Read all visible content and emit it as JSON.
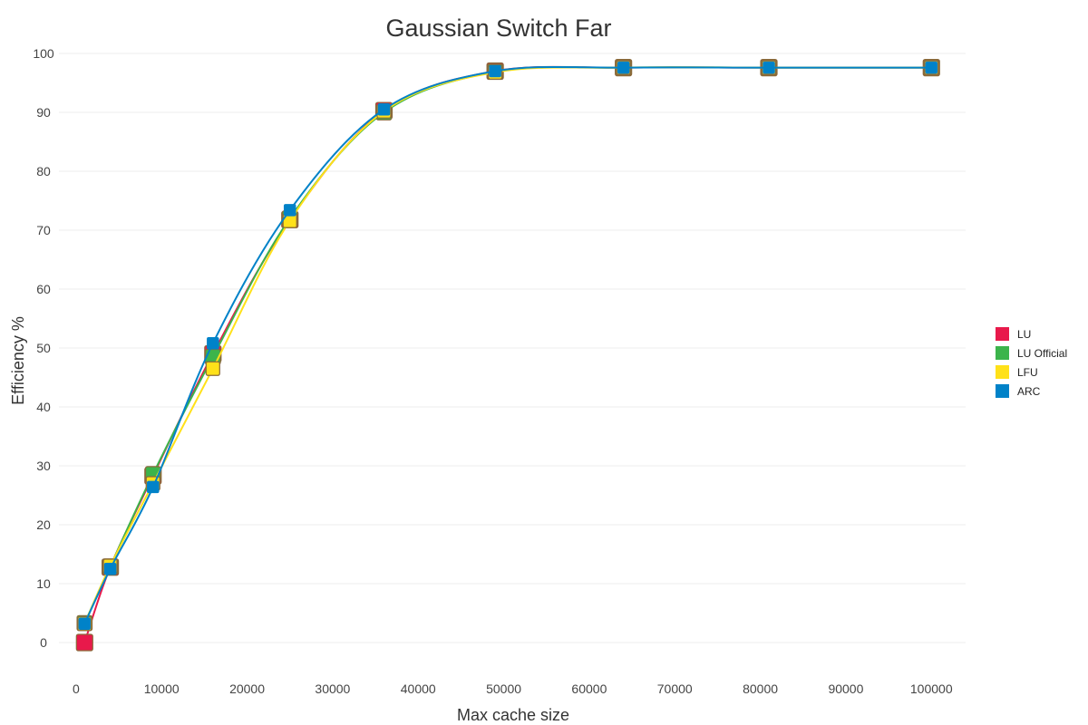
{
  "chart_data": {
    "type": "line",
    "title": "Gaussian Switch Far",
    "xlabel": "Max cache size",
    "ylabel": "Efficiency %",
    "xlim": [
      -2000,
      104000
    ],
    "ylim": [
      -4,
      102
    ],
    "x_ticks": [
      0,
      10000,
      20000,
      30000,
      40000,
      50000,
      60000,
      70000,
      80000,
      90000,
      100000
    ],
    "y_ticks": [
      0,
      10,
      20,
      30,
      40,
      50,
      60,
      70,
      80,
      90,
      100
    ],
    "grid": "horizontal",
    "legend_position": "right",
    "x": [
      1000,
      4000,
      9000,
      16000,
      25000,
      36000,
      49000,
      64000,
      81000,
      100000
    ],
    "series": [
      {
        "name": "LU",
        "color": "#e8194b",
        "values": [
          0,
          12.8,
          28.3,
          49.0,
          71.8,
          90.3,
          97.0,
          97.6,
          97.6,
          97.6
        ]
      },
      {
        "name": "LU Official",
        "color": "#3cb44b",
        "values": [
          3.3,
          12.9,
          28.6,
          48.5,
          72.0,
          90.0,
          96.9,
          97.6,
          97.6,
          97.6
        ]
      },
      {
        "name": "LFU",
        "color": "#ffe119",
        "values": [
          3.2,
          13.0,
          27.0,
          46.5,
          71.6,
          90.2,
          96.8,
          97.6,
          97.6,
          97.6
        ]
      },
      {
        "name": "ARC",
        "color": "#0082c8",
        "values": [
          3.2,
          12.5,
          26.4,
          50.8,
          73.4,
          90.5,
          97.0,
          97.6,
          97.6,
          97.6
        ]
      }
    ]
  }
}
